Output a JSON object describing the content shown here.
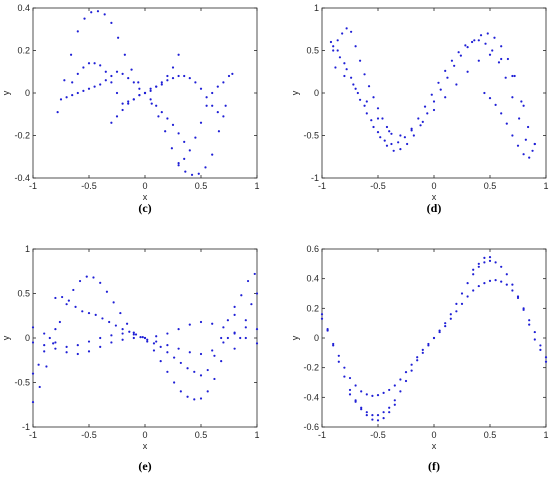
{
  "colors": {
    "points": "#1f1fd6",
    "axes": "#262626",
    "background": "#ffffff"
  },
  "chart_data": [
    {
      "type": "scatter",
      "caption": "(c)",
      "xlabel": "x",
      "ylabel": "y",
      "xlim": [
        -1,
        1
      ],
      "ylim": [
        -0.4,
        0.4
      ],
      "xticks": [
        "-1",
        "-0.5",
        "0",
        "0.5",
        "1"
      ],
      "yticks": [
        "-0.4",
        "-0.2",
        "0",
        "0.2",
        "0.4"
      ],
      "xtick_values": [
        -1,
        -0.5,
        0,
        0.5,
        1
      ],
      "ytick_values": [
        -0.4,
        -0.2,
        0,
        0.2,
        0.4
      ],
      "point_color": "#1f1fd6",
      "series": [
        {
          "x": [
            -0.78,
            -0.72,
            -0.66,
            -0.6,
            -0.54,
            -0.48,
            -0.42,
            -0.36,
            -0.3,
            -0.24,
            -0.18,
            -0.12,
            -0.06,
            0,
            0.06,
            0.12,
            0.18,
            0.24,
            0.3,
            0.36,
            0.42,
            0.48,
            0.54,
            0.6,
            0.66,
            0.72,
            0.78
          ],
          "y": [
            -0.09,
            0.06,
            0.18,
            0.29,
            0.35,
            0.38,
            0.385,
            0.37,
            0.33,
            0.26,
            0.18,
            0.11,
            0.05,
            0,
            -0.05,
            -0.11,
            -0.18,
            -0.26,
            -0.33,
            -0.37,
            -0.385,
            -0.38,
            -0.35,
            -0.29,
            -0.18,
            -0.06,
            0.09
          ]
        },
        {
          "x": [
            -0.75,
            -0.7,
            -0.65,
            -0.6,
            -0.55,
            -0.5,
            -0.45,
            -0.4,
            -0.35,
            -0.3,
            -0.25,
            -0.2,
            -0.15,
            -0.1,
            -0.05,
            0,
            0.05,
            0.1,
            0.15,
            0.2,
            0.25,
            0.3,
            0.35
          ],
          "y": [
            -0.03,
            -0.02,
            -0.01,
            0,
            0.01,
            0.02,
            0.03,
            0.04,
            0.06,
            0.08,
            0.1,
            0.09,
            0.07,
            0.05,
            0.02,
            0,
            -0.03,
            -0.06,
            -0.09,
            -0.12,
            -0.15,
            -0.19,
            -0.23
          ]
        },
        {
          "x": [
            -0.2,
            -0.15,
            -0.1,
            -0.05,
            0,
            0.05,
            0.1,
            0.15,
            0.2,
            0.25,
            0.3,
            0.35,
            0.4,
            0.45,
            0.5,
            0.55,
            0.6,
            0.65,
            0.7
          ],
          "y": [
            -0.05,
            -0.04,
            -0.03,
            -0.01,
            0,
            0.02,
            0.03,
            0.04,
            0.06,
            0.07,
            0.08,
            0.08,
            0.07,
            0.05,
            0.02,
            -0.02,
            -0.06,
            -0.09,
            -0.11
          ]
        },
        {
          "x": [
            -0.3,
            -0.25,
            -0.2,
            -0.15,
            -0.1,
            -0.05,
            0,
            0.05,
            0.1,
            0.15,
            0.2,
            0.25,
            0.3
          ],
          "y": [
            -0.14,
            -0.11,
            -0.08,
            -0.05,
            -0.03,
            -0.01,
            0,
            0.01,
            0.03,
            0.05,
            0.08,
            0.12,
            0.18
          ]
        },
        {
          "x": [
            0.3,
            0.35,
            0.4,
            0.45,
            0.5,
            0.55,
            0.6,
            0.65,
            0.7,
            0.75
          ],
          "y": [
            -0.34,
            -0.31,
            -0.27,
            -0.21,
            -0.14,
            -0.06,
            0.0,
            0.03,
            0.05,
            0.08
          ]
        },
        {
          "x": [
            -0.65,
            -0.6,
            -0.55,
            -0.5,
            -0.45,
            -0.4,
            -0.35,
            -0.3,
            -0.25
          ],
          "y": [
            0.05,
            0.09,
            0.12,
            0.14,
            0.14,
            0.13,
            0.1,
            0.05,
            0.0
          ]
        }
      ]
    },
    {
      "type": "scatter",
      "caption": "(d)",
      "xlabel": "x",
      "ylabel": "y",
      "xlim": [
        -1,
        1
      ],
      "ylim": [
        -1,
        1
      ],
      "xticks": [
        "-1",
        "-0.5",
        "0",
        "0.5",
        "1"
      ],
      "yticks": [
        "-1",
        "-0.5",
        "0",
        "0.5",
        "1"
      ],
      "xtick_values": [
        -1,
        -0.5,
        0,
        0.5,
        1
      ],
      "ytick_values": [
        -1,
        -0.5,
        0,
        0.5,
        1
      ],
      "point_color": "#1f1fd6",
      "series": [
        {
          "x": [
            -0.92,
            -0.86,
            -0.8,
            -0.74,
            -0.68,
            -0.62,
            -0.56,
            -0.5,
            -0.44,
            -0.38,
            -0.32,
            -0.26,
            -0.2,
            -0.14,
            -0.08,
            -0.02,
            0.04,
            0.1,
            0.16,
            0.22,
            0.28,
            0.34,
            0.4,
            0.46,
            0.52,
            0.58,
            0.64,
            0.7,
            0.76,
            0.82,
            0.88
          ],
          "y": [
            0.6,
            0.5,
            0.35,
            0.18,
            0.0,
            -0.15,
            -0.32,
            -0.46,
            -0.56,
            -0.6,
            -0.58,
            -0.52,
            -0.42,
            -0.3,
            -0.16,
            -0.02,
            0.12,
            0.26,
            0.38,
            0.48,
            0.56,
            0.6,
            0.62,
            0.58,
            0.5,
            0.36,
            0.18,
            -0.05,
            -0.3,
            -0.55,
            -0.68
          ]
        },
        {
          "x": [
            -0.9,
            -0.84,
            -0.78,
            -0.72,
            -0.66,
            -0.6,
            -0.54,
            -0.48,
            -0.42,
            -0.36,
            -0.3,
            -0.24,
            -0.18,
            -0.12,
            -0.06,
            0,
            0.06,
            0.12,
            0.18,
            0.24,
            0.3,
            0.36,
            0.42,
            0.48,
            0.54,
            0.6,
            0.66,
            0.72,
            0.78,
            0.84,
            0.9
          ],
          "y": [
            0.5,
            0.42,
            0.28,
            0.1,
            -0.08,
            -0.24,
            -0.4,
            -0.52,
            -0.62,
            -0.68,
            -0.66,
            -0.6,
            -0.5,
            -0.38,
            -0.24,
            -0.1,
            0.04,
            0.18,
            0.32,
            0.44,
            0.54,
            0.62,
            0.68,
            0.7,
            0.65,
            0.55,
            0.4,
            0.2,
            -0.1,
            -0.4,
            -0.6
          ]
        },
        {
          "x": [
            -0.9,
            -0.86,
            -0.82,
            -0.78,
            -0.74,
            -0.7,
            -0.66,
            -0.62,
            -0.58,
            -0.54,
            -0.5,
            -0.46,
            -0.42,
            -0.38
          ],
          "y": [
            0.55,
            0.62,
            0.7,
            0.76,
            0.72,
            0.55,
            0.38,
            0.22,
            0.08,
            -0.05,
            -0.18,
            -0.3,
            -0.4,
            -0.48
          ]
        },
        {
          "x": [
            0.45,
            0.5,
            0.55,
            0.6,
            0.65,
            0.7,
            0.75,
            0.8,
            0.85,
            0.9
          ],
          "y": [
            0.0,
            -0.06,
            -0.14,
            -0.24,
            -0.36,
            -0.5,
            -0.62,
            -0.72,
            -0.76,
            -0.6
          ]
        },
        {
          "x": [
            -0.88,
            -0.8,
            -0.7,
            -0.6,
            -0.5,
            -0.4,
            -0.3,
            -0.2,
            -0.1,
            0,
            0.1,
            0.2,
            0.3,
            0.4,
            0.5,
            0.6,
            0.7,
            0.8
          ],
          "y": [
            0.3,
            0.2,
            0.05,
            -0.1,
            -0.3,
            -0.45,
            -0.5,
            -0.44,
            -0.34,
            -0.2,
            -0.05,
            0.1,
            0.25,
            0.38,
            0.45,
            0.4,
            0.2,
            -0.15
          ]
        }
      ]
    },
    {
      "type": "scatter",
      "caption": "(e)",
      "xlabel": "x",
      "ylabel": "y",
      "xlim": [
        -1,
        1
      ],
      "ylim": [
        -1,
        1
      ],
      "xticks": [
        "-1",
        "-0.5",
        "0",
        "0.5",
        "1"
      ],
      "yticks": [
        "-1",
        "-0.5",
        "0",
        "0.5",
        "1"
      ],
      "xtick_values": [
        -1,
        -0.5,
        0,
        0.5,
        1
      ],
      "ytick_values": [
        -1,
        -0.5,
        0,
        0.5,
        1
      ],
      "point_color": "#1f1fd6",
      "series": [
        {
          "x": [
            -1,
            -0.94,
            -0.88,
            -0.82,
            -0.76,
            -0.7,
            -0.64,
            -0.58,
            -0.52,
            -0.46,
            -0.4,
            -0.34,
            -0.28,
            -0.22,
            -0.16,
            -0.1,
            -0.04,
            0.02,
            0.08,
            0.14,
            0.2,
            0.26,
            0.32,
            0.38,
            0.44,
            0.5,
            0.56,
            0.62,
            0.68,
            0.74,
            0.8,
            0.86,
            0.92,
            0.98
          ],
          "y": [
            -0.72,
            -0.55,
            -0.32,
            -0.06,
            0.18,
            0.38,
            0.54,
            0.64,
            0.69,
            0.68,
            0.62,
            0.52,
            0.4,
            0.28,
            0.16,
            0.06,
            0.01,
            -0.04,
            -0.14,
            -0.26,
            -0.38,
            -0.5,
            -0.6,
            -0.66,
            -0.69,
            -0.68,
            -0.6,
            -0.46,
            -0.26,
            0.0,
            0.26,
            0.48,
            0.64,
            0.72
          ]
        },
        {
          "x": [
            -1,
            -0.9,
            -0.8,
            -0.7,
            -0.6,
            -0.5,
            -0.4,
            -0.3,
            -0.2,
            -0.1,
            0,
            0.1,
            0.2,
            0.3,
            0.4,
            0.5,
            0.6,
            0.7,
            0.8,
            0.9,
            1
          ],
          "y": [
            0.12,
            0.05,
            -0.05,
            -0.1,
            -0.08,
            -0.04,
            0.0,
            0.03,
            0.05,
            0.04,
            0.0,
            -0.04,
            -0.08,
            -0.12,
            -0.16,
            -0.18,
            -0.14,
            -0.05,
            0.05,
            0.12,
            0.1
          ]
        },
        {
          "x": [
            -1,
            -0.9,
            -0.8,
            -0.7,
            -0.6,
            -0.5,
            -0.4,
            -0.3,
            -0.2,
            -0.1,
            0,
            0.1,
            0.2,
            0.3,
            0.4,
            0.5,
            0.6,
            0.7,
            0.8,
            0.9,
            1
          ],
          "y": [
            -0.05,
            -0.08,
            -0.12,
            -0.16,
            -0.18,
            -0.15,
            -0.1,
            -0.05,
            -0.02,
            0.0,
            0.0,
            0.02,
            0.05,
            0.1,
            0.15,
            0.18,
            0.16,
            0.12,
            0.06,
            0.0,
            -0.06
          ]
        },
        {
          "x": [
            -0.8,
            -0.74,
            -0.68,
            -0.62,
            -0.56,
            -0.5,
            -0.44,
            -0.38,
            -0.32,
            -0.26,
            -0.2,
            -0.14,
            -0.08,
            -0.02
          ],
          "y": [
            0.45,
            0.46,
            0.42,
            0.35,
            0.3,
            0.28,
            0.26,
            0.22,
            0.18,
            0.14,
            0.1,
            0.07,
            0.04,
            0.01
          ]
        },
        {
          "x": [
            0.02,
            0.08,
            0.14,
            0.2,
            0.26,
            0.32,
            0.38,
            0.44,
            0.5,
            0.56,
            0.62,
            0.68,
            0.74,
            0.8
          ],
          "y": [
            -0.02,
            -0.06,
            -0.1,
            -0.16,
            -0.22,
            -0.28,
            -0.34,
            -0.38,
            -0.42,
            -0.36,
            -0.2,
            0.0,
            0.2,
            0.35
          ]
        },
        {
          "x": [
            -1,
            -0.95,
            -0.9,
            -0.85,
            -0.8,
            0.8,
            0.85,
            0.9,
            0.95,
            1
          ],
          "y": [
            -0.4,
            -0.3,
            -0.15,
            0.0,
            0.1,
            -0.12,
            0.0,
            0.2,
            0.38,
            0.5
          ]
        }
      ]
    },
    {
      "type": "scatter",
      "caption": "(f)",
      "xlabel": "x",
      "ylabel": "y",
      "xlim": [
        -1,
        1
      ],
      "ylim": [
        -0.6,
        0.6
      ],
      "xticks": [
        "-1",
        "-0.5",
        "0",
        "0.5",
        "1"
      ],
      "yticks": [
        "-0.6",
        "-0.4",
        "-0.2",
        "0",
        "0.2",
        "0.4",
        "0.6"
      ],
      "xtick_values": [
        -1,
        -0.5,
        0,
        0.5,
        1
      ],
      "ytick_values": [
        -0.6,
        -0.4,
        -0.2,
        0,
        0.2,
        0.4,
        0.6
      ],
      "point_color": "#1f1fd6",
      "series": [
        {
          "x": [
            -1,
            -0.95,
            -0.9,
            -0.85,
            -0.8,
            -0.75,
            -0.7,
            -0.65,
            -0.6,
            -0.55,
            -0.5,
            -0.45,
            -0.4,
            -0.35,
            -0.3,
            -0.25,
            -0.2,
            -0.15,
            -0.1,
            -0.05,
            0,
            0.05,
            0.1,
            0.15,
            0.2,
            0.25,
            0.3,
            0.35,
            0.4,
            0.45,
            0.5,
            0.55,
            0.6,
            0.65,
            0.7,
            0.75,
            0.8,
            0.85,
            0.9,
            0.95,
            1
          ],
          "y": [
            0.13,
            0.05,
            -0.04,
            -0.12,
            -0.2,
            -0.27,
            -0.32,
            -0.36,
            -0.38,
            -0.39,
            -0.385,
            -0.37,
            -0.35,
            -0.32,
            -0.28,
            -0.23,
            -0.18,
            -0.13,
            -0.08,
            -0.04,
            0,
            0.04,
            0.08,
            0.13,
            0.18,
            0.23,
            0.28,
            0.32,
            0.35,
            0.37,
            0.385,
            0.39,
            0.38,
            0.36,
            0.32,
            0.27,
            0.2,
            0.12,
            0.04,
            -0.05,
            -0.13
          ]
        },
        {
          "x": [
            -1,
            -0.95,
            -0.9,
            -0.85,
            -0.8,
            -0.75,
            -0.7,
            -0.65,
            -0.6,
            -0.55,
            -0.5,
            -0.45,
            -0.4,
            -0.35,
            -0.3,
            -0.25,
            -0.2,
            -0.15,
            -0.1,
            -0.05,
            0,
            0.05,
            0.1,
            0.15,
            0.2,
            0.25,
            0.3,
            0.35,
            0.4,
            0.45,
            0.5,
            0.55,
            0.6,
            0.65,
            0.7,
            0.75,
            0.8,
            0.85,
            0.9,
            0.95,
            1
          ],
          "y": [
            0.16,
            0.06,
            -0.05,
            -0.16,
            -0.26,
            -0.35,
            -0.42,
            -0.47,
            -0.5,
            -0.52,
            -0.52,
            -0.5,
            -0.47,
            -0.42,
            -0.36,
            -0.29,
            -0.22,
            -0.15,
            -0.1,
            -0.05,
            0,
            0.05,
            0.1,
            0.16,
            0.23,
            0.3,
            0.37,
            0.43,
            0.48,
            0.51,
            0.52,
            0.51,
            0.48,
            0.43,
            0.36,
            0.28,
            0.19,
            0.09,
            -0.01,
            -0.08,
            -0.16
          ]
        },
        {
          "x": [
            -0.75,
            -0.7,
            -0.65,
            -0.6,
            -0.55,
            -0.5,
            -0.45,
            -0.4,
            -0.35,
            0.35,
            0.4,
            0.45,
            0.5
          ],
          "y": [
            -0.38,
            -0.43,
            -0.48,
            -0.52,
            -0.55,
            -0.555,
            -0.54,
            -0.5,
            -0.45,
            0.46,
            0.5,
            0.54,
            0.545
          ]
        }
      ]
    }
  ]
}
